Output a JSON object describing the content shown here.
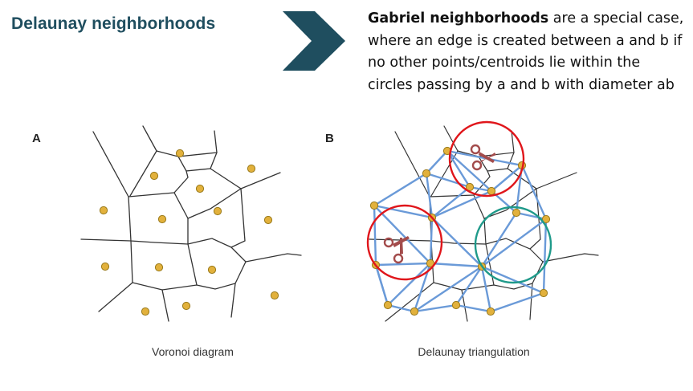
{
  "title": "Delaunay neighborhoods",
  "description": {
    "bold": "Gabriel neighborhoods",
    "rest": " are a special case, where an edge is created between a and b if no other points/centroids lie within the circles passing by a and b with diameter ab"
  },
  "panels": [
    {
      "letter": "A",
      "caption": "Voronoi diagram"
    },
    {
      "letter": "B",
      "caption": "Delaunay triangulation"
    }
  ],
  "colors": {
    "title": "#1f4e5f",
    "arrow": "#1f4e5f",
    "point_fill": "#e2b13c",
    "point_stroke": "#9a7a1a",
    "voronoi_edge": "#333333",
    "delaunay_edge": "#6a9ad8",
    "removed_circle": "#e0161b",
    "kept_circle": "#1f9a8a",
    "scissors": "#a34c4c"
  },
  "icons": [
    "chevron-right-arrow",
    "scissors-icon"
  ]
}
